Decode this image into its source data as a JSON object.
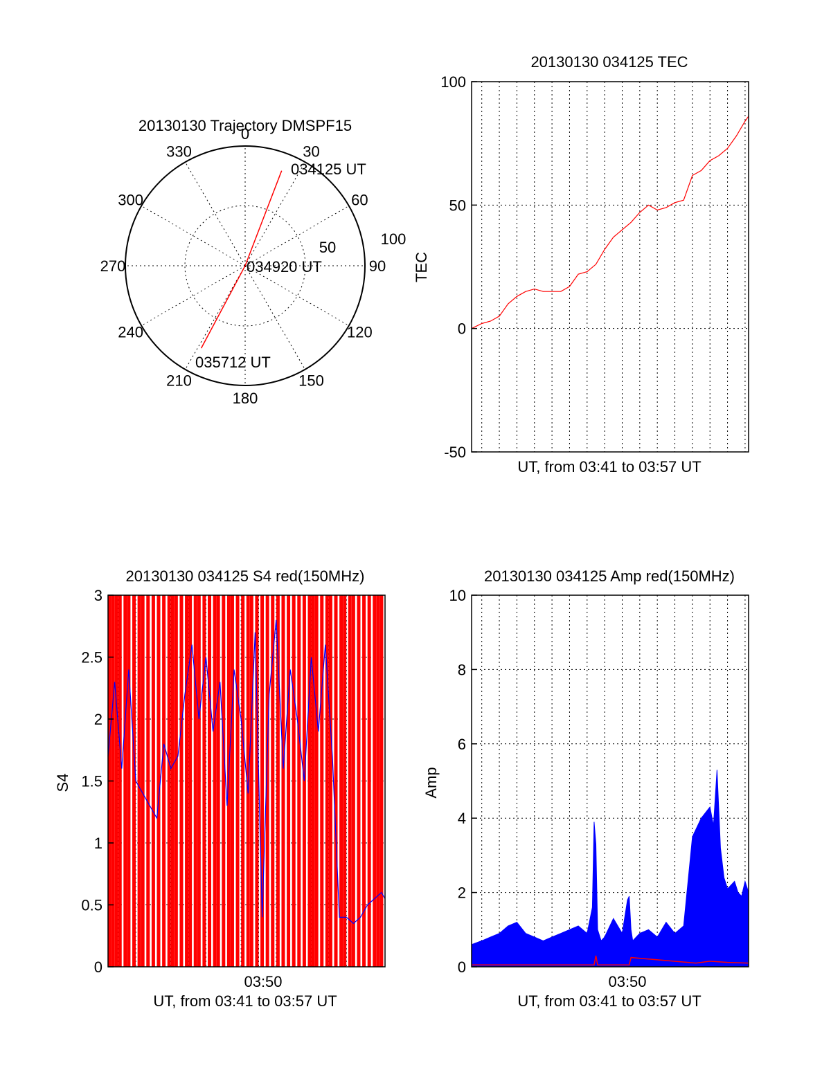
{
  "colors": {
    "red": "#ff0000",
    "blue": "#0000ff",
    "axis": "#000000"
  },
  "chart_data": [
    {
      "id": "trajectory",
      "type": "polar",
      "title": "20130130 Trajectory DMSPF15",
      "angle_ticks": [
        "0",
        "30",
        "60",
        "90",
        "120",
        "150",
        "180",
        "210",
        "240",
        "270",
        "300",
        "330"
      ],
      "radius_ticks": [
        "50",
        "100"
      ],
      "rlim": [
        0,
        100
      ],
      "grid": true,
      "track": {
        "color": "red",
        "points": [
          {
            "azimuth": 21,
            "radius": 85
          },
          {
            "azimuth": 0,
            "radius": 0
          },
          {
            "azimuth": 208,
            "radius": 78
          }
        ]
      },
      "annotations": [
        {
          "text": "034125 UT",
          "azimuth": 21,
          "radius": 85
        },
        {
          "text": "034920 UT",
          "azimuth": 0,
          "radius": 0
        },
        {
          "text": "035712 UT",
          "azimuth": 208,
          "radius": 78
        }
      ]
    },
    {
      "id": "tec",
      "type": "line",
      "title": "20130130 034125 TEC",
      "xlabel": "UT, from 03:41 to 03:57 UT",
      "ylabel": "TEC",
      "ylim": [
        -50,
        100
      ],
      "yticks": [
        "-50",
        "0",
        "50",
        "100"
      ],
      "xrange_minutes": [
        41.42,
        57.2
      ],
      "grid": true,
      "series": [
        {
          "color": "red",
          "x": [
            41.42,
            42.0,
            42.5,
            43.0,
            43.5,
            44.0,
            44.5,
            45.0,
            45.5,
            46.0,
            46.5,
            47.0,
            47.5,
            48.0,
            48.5,
            49.0,
            49.5,
            50.0,
            50.5,
            51.0,
            51.5,
            52.0,
            52.5,
            53.0,
            53.5,
            54.0,
            54.5,
            55.0,
            55.5,
            56.0,
            56.5,
            57.0,
            57.2
          ],
          "y": [
            0,
            2,
            3,
            5,
            10,
            13,
            15,
            16,
            15,
            15,
            15,
            17,
            22,
            23,
            26,
            32,
            37,
            40,
            43,
            47,
            50,
            48,
            49,
            51,
            52,
            62,
            64,
            68,
            70,
            73,
            78,
            84,
            86
          ]
        }
      ]
    },
    {
      "id": "s4",
      "type": "line",
      "title": "20130130 034125 S4 red(150MHz)",
      "xlabel": "UT, from 03:41 to 03:57 UT",
      "ylabel": "S4",
      "ylim": [
        0,
        3
      ],
      "yticks": [
        "0",
        "0.5",
        "1",
        "1.5",
        "2",
        "2.5",
        "3"
      ],
      "xticks": [
        "03:50"
      ],
      "xrange_minutes": [
        41.42,
        57.2
      ],
      "grid": true,
      "series": [
        {
          "color": "blue",
          "x": [
            41.42,
            41.8,
            42.2,
            42.6,
            43.0,
            43.4,
            43.8,
            44.2,
            44.6,
            45.0,
            45.4,
            45.8,
            46.2,
            46.6,
            47.0,
            47.4,
            47.8,
            48.2,
            48.6,
            49.0,
            49.4,
            49.8,
            50.2,
            50.6,
            51.0,
            51.4,
            51.8,
            52.2,
            52.6,
            53.0,
            53.4,
            53.8,
            54.2,
            54.6,
            55.0,
            55.4,
            55.8,
            56.2,
            56.6,
            57.0,
            57.2
          ],
          "y": [
            1.7,
            2.3,
            1.6,
            2.4,
            1.5,
            1.4,
            1.3,
            1.2,
            1.8,
            1.6,
            1.7,
            2.2,
            2.6,
            2.0,
            2.5,
            1.9,
            2.3,
            1.3,
            2.4,
            2.0,
            1.4,
            2.7,
            0.4,
            2.2,
            2.8,
            1.6,
            2.4,
            2.0,
            1.5,
            2.5,
            1.9,
            2.6,
            1.7,
            0.4,
            0.4,
            0.35,
            0.4,
            0.5,
            0.55,
            0.6,
            0.55
          ]
        },
        {
          "color": "red",
          "style": "vertical-bars",
          "x": [
            41.5,
            41.7,
            41.9,
            42.1,
            42.4,
            42.6,
            42.9,
            43.2,
            43.4,
            43.7,
            44.0,
            44.3,
            44.6,
            44.9,
            45.1,
            45.3,
            45.6,
            45.9,
            46.1,
            46.4,
            46.6,
            46.9,
            47.2,
            47.5,
            47.7,
            48.0,
            48.3,
            48.5,
            48.8,
            49.1,
            49.4,
            49.6,
            49.9,
            50.2,
            50.5,
            50.8,
            51.1,
            51.4,
            51.7,
            52.0,
            52.3,
            52.6,
            52.9,
            53.1,
            53.3,
            53.6,
            53.9,
            54.1,
            54.4,
            54.7,
            54.9,
            55.2,
            55.4,
            55.7,
            56.0,
            56.3,
            56.6,
            56.8,
            57.0
          ],
          "y": [
            3,
            3,
            3,
            3,
            3,
            3,
            3,
            3,
            3,
            3,
            3,
            3,
            3,
            3,
            3,
            3,
            3,
            3,
            3,
            3,
            3,
            3,
            3,
            3,
            3,
            3,
            3,
            3,
            3,
            3,
            3,
            3,
            3,
            3,
            3,
            3,
            3,
            3,
            3,
            3,
            3,
            3,
            3,
            3,
            3,
            3,
            3,
            3,
            3,
            3,
            3,
            3,
            3,
            3,
            3,
            3,
            3,
            3,
            3
          ]
        }
      ]
    },
    {
      "id": "amp",
      "type": "line",
      "title": "20130130 034125 Amp red(150MHz)",
      "xlabel": "UT, from 03:41 to 03:57 UT",
      "ylabel": "Amp",
      "ylim": [
        0,
        10
      ],
      "yticks": [
        "0",
        "2",
        "4",
        "6",
        "8",
        "10"
      ],
      "xticks": [
        "03:50"
      ],
      "xrange_minutes": [
        41.42,
        57.2
      ],
      "grid": true,
      "series": [
        {
          "color": "blue",
          "x": [
            41.42,
            42.0,
            42.5,
            43.0,
            43.5,
            44.0,
            44.5,
            45.0,
            45.5,
            46.0,
            46.5,
            47.0,
            47.5,
            48.0,
            48.3,
            48.4,
            48.5,
            48.6,
            48.8,
            49.0,
            49.5,
            50.0,
            50.3,
            50.4,
            50.5,
            50.6,
            51.0,
            51.5,
            52.0,
            52.5,
            53.0,
            53.5,
            54.0,
            54.5,
            55.0,
            55.2,
            55.4,
            55.6,
            55.8,
            56.0,
            56.2,
            56.4,
            56.6,
            56.8,
            57.0,
            57.2
          ],
          "y": [
            0.6,
            0.7,
            0.8,
            0.9,
            1.1,
            1.2,
            0.9,
            0.8,
            0.7,
            0.8,
            0.9,
            1.0,
            1.1,
            0.9,
            1.6,
            3.9,
            3.3,
            1.0,
            0.7,
            0.8,
            1.3,
            0.9,
            1.8,
            1.9,
            1.0,
            0.7,
            0.9,
            1.0,
            0.8,
            1.2,
            0.9,
            1.1,
            3.5,
            4.0,
            4.3,
            3.8,
            5.3,
            3.2,
            2.4,
            2.1,
            2.2,
            2.3,
            2.0,
            1.9,
            2.3,
            2.0
          ]
        },
        {
          "color": "red",
          "x": [
            41.42,
            48.4,
            48.5,
            48.6,
            50.4,
            50.5,
            54.2,
            55.0,
            56.0,
            57.2
          ],
          "y": [
            0.05,
            0.05,
            0.3,
            0.05,
            0.05,
            0.25,
            0.1,
            0.15,
            0.12,
            0.1
          ]
        }
      ]
    }
  ]
}
